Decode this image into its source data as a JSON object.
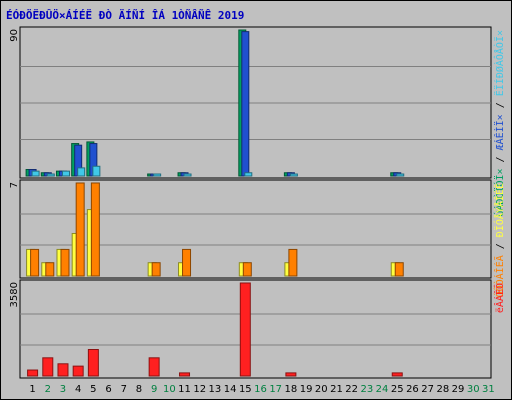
{
  "title": "ÉÓÐÖËÐÛÖ×ÁÍÉË ÐÒ ÄÍÑÍ ÎÁ 1ÒÑÂÑÊ 2019",
  "chart_data": {
    "type": "bar",
    "days": [
      "1",
      "2",
      "3",
      "4",
      "5",
      "6",
      "7",
      "8",
      "9",
      "10",
      "11",
      "12",
      "13",
      "14",
      "15",
      "16",
      "17",
      "18",
      "19",
      "20",
      "21",
      "22",
      "23",
      "24",
      "25",
      "26",
      "27",
      "28",
      "29",
      "30",
      "31"
    ],
    "weekend_days": [
      "2",
      "3",
      "9",
      "10",
      "16",
      "17",
      "23",
      "24",
      "30",
      "31"
    ],
    "colors": {
      "weekday_label": "#000000",
      "weekend_label": "#008040",
      "hits": "#00a060",
      "files": "#2050d0",
      "sites": "#40c8e8",
      "visits": "#ffff40",
      "pages": "#ff8000",
      "kbytes": "#ff2020"
    },
    "panels": [
      {
        "id": "hits-files-sites",
        "ymax": 90,
        "ymax_label": "90",
        "legend": [
          {
            "key": "hits",
            "label": "ÚÁÐÒÏÓÏ×"
          },
          {
            "key": "files",
            "label": "ÆÁÊÌÏ×"
          },
          {
            "key": "sites",
            "label": "ËÏÍÐØÀÔÅÒÏ×"
          }
        ],
        "series": [
          {
            "key": "hits",
            "values": [
              4,
              2,
              3,
              20,
              21,
              0,
              0,
              0,
              1,
              0,
              2,
              0,
              0,
              0,
              90,
              0,
              0,
              2,
              0,
              0,
              0,
              0,
              0,
              0,
              2,
              0,
              0,
              0,
              0,
              0,
              0
            ]
          },
          {
            "key": "files",
            "values": [
              4,
              2,
              3,
              19,
              20,
              0,
              0,
              0,
              1,
              0,
              2,
              0,
              0,
              0,
              89,
              0,
              0,
              2,
              0,
              0,
              0,
              0,
              0,
              0,
              2,
              0,
              0,
              0,
              0,
              0,
              0
            ]
          },
          {
            "key": "sites",
            "values": [
              3,
              1,
              3,
              5,
              6,
              0,
              0,
              0,
              1,
              0,
              1,
              0,
              0,
              0,
              2,
              0,
              0,
              1,
              0,
              0,
              0,
              0,
              0,
              0,
              1,
              0,
              0,
              0,
              0,
              0,
              0
            ]
          }
        ]
      },
      {
        "id": "visits-pages",
        "ymax": 7,
        "ymax_label": "7",
        "legend": [
          {
            "key": "pages",
            "label": "ÓÔÒÁÎÉÃ"
          },
          {
            "key": "visits",
            "label": "ÐÏÓÅÝÅÎÉÊ"
          }
        ],
        "series": [
          {
            "key": "visits",
            "values": [
              2,
              1,
              2,
              3.2,
              5,
              0,
              0,
              0,
              1,
              0,
              1,
              0,
              0,
              0,
              1,
              0,
              0,
              1,
              0,
              0,
              0,
              0,
              0,
              0,
              1,
              0,
              0,
              0,
              0,
              0,
              0
            ]
          },
          {
            "key": "pages",
            "values": [
              2,
              1,
              2,
              7,
              7,
              0,
              0,
              0,
              1,
              0,
              2,
              0,
              0,
              0,
              1,
              0,
              0,
              2,
              0,
              0,
              0,
              0,
              0,
              0,
              1,
              0,
              0,
              0,
              0,
              0,
              0
            ]
          }
        ]
      },
      {
        "id": "kbytes",
        "ymax": 3580,
        "ymax_label": "3580",
        "legend": [
          {
            "key": "kbytes",
            "label": "ëÂÁÊÔ"
          }
        ],
        "series": [
          {
            "key": "kbytes",
            "values": [
              230,
              700,
              470,
              380,
              1020,
              0,
              0,
              0,
              700,
              0,
              120,
              0,
              0,
              0,
              3580,
              0,
              0,
              120,
              0,
              0,
              0,
              0,
              0,
              0,
              120,
              0,
              0,
              0,
              0,
              0,
              0
            ]
          }
        ]
      }
    ]
  }
}
